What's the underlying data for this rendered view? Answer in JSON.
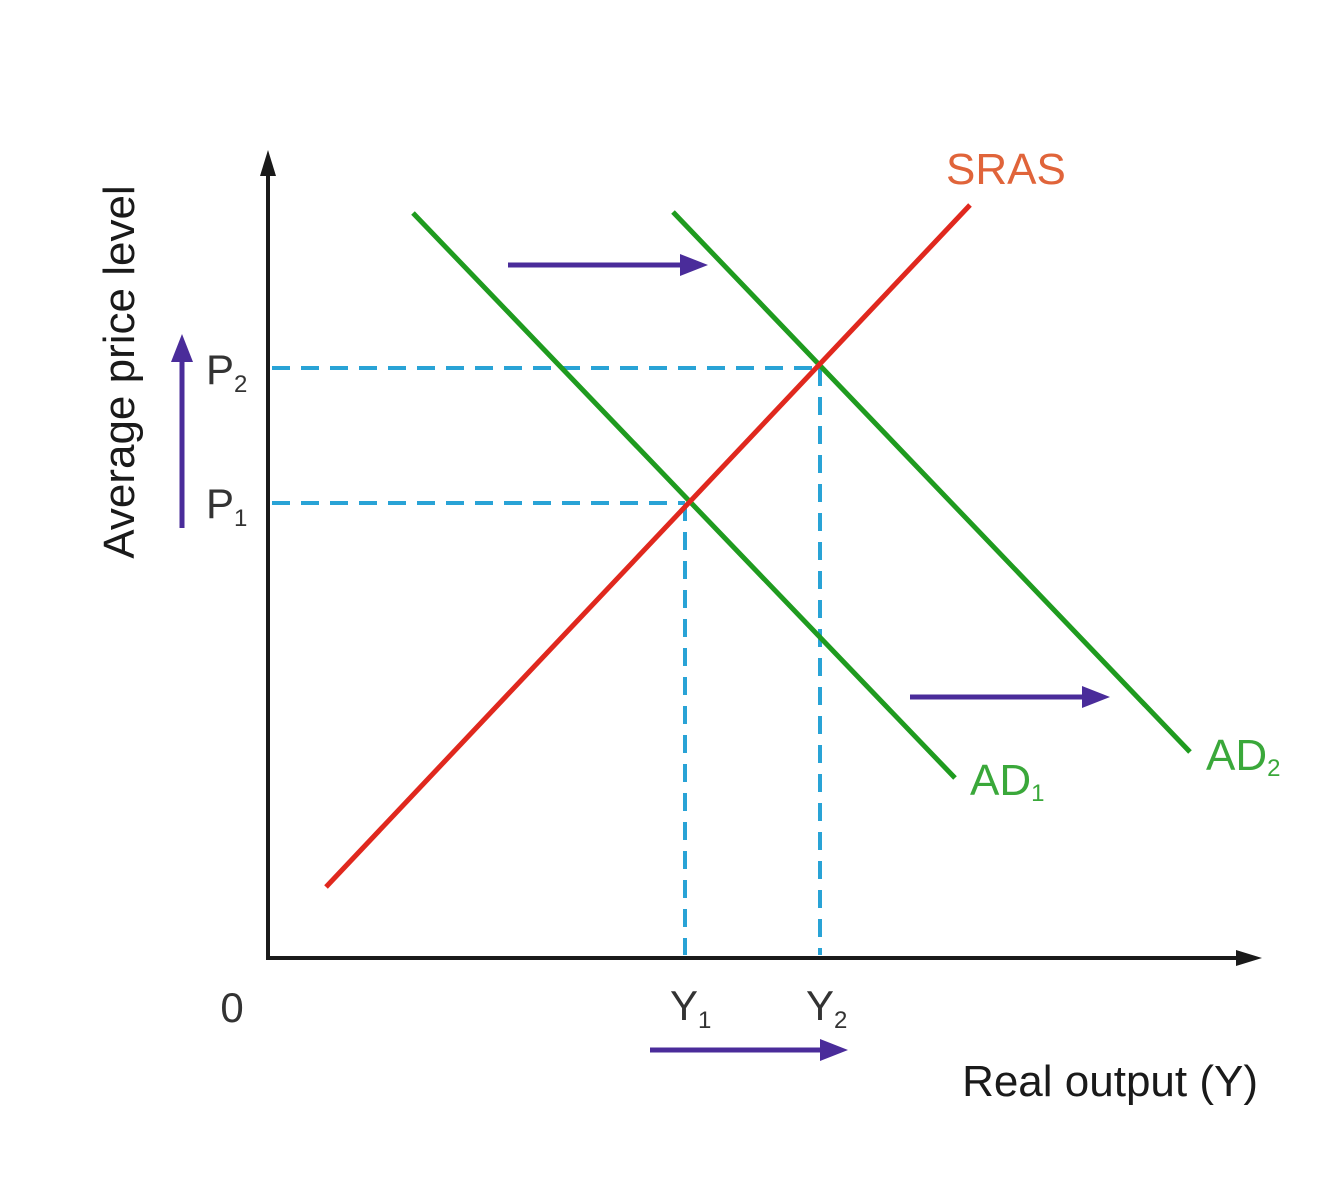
{
  "axes": {
    "y_title": "Average price level",
    "x_title": "Real output (Y)",
    "origin_label": "0"
  },
  "ticks": {
    "p1": {
      "main": "P",
      "sub": "1"
    },
    "p2": {
      "main": "P",
      "sub": "2"
    },
    "y1": {
      "main": "Y",
      "sub": "1"
    },
    "y2": {
      "main": "Y",
      "sub": "2"
    }
  },
  "curves": {
    "sras": {
      "label": "SRAS",
      "color": "#e0281e"
    },
    "ad1": {
      "label": "AD",
      "sub": "1",
      "color": "#1f9b1f"
    },
    "ad2": {
      "label": "AD",
      "sub": "2",
      "color": "#1f9b1f"
    }
  },
  "colors": {
    "guide": "#29a3d6",
    "shift_arrow": "#4a2c9a",
    "axis": "#1a1a1a"
  }
}
